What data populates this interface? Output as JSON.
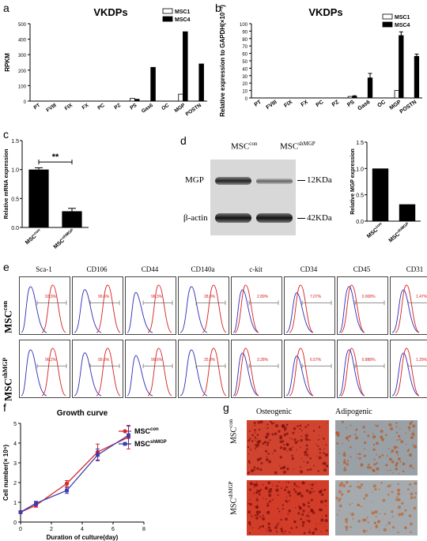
{
  "panel_labels": [
    "a",
    "b",
    "c",
    "d",
    "e",
    "f",
    "g"
  ],
  "chart_data": [
    {
      "id": "a",
      "type": "bar",
      "title": "VKDPs",
      "ylabel": "RPKM",
      "ylim": [
        0,
        500
      ],
      "yticks": [
        "0",
        "100",
        "200",
        "300",
        "400",
        "500"
      ],
      "categories": [
        "PT",
        "FVIII",
        "FIX",
        "FX",
        "PC",
        "PZ",
        "PS",
        "Gas6",
        "OC",
        "MGP",
        "POSTN"
      ],
      "series": [
        {
          "name": "MSC1",
          "color": "#ffffff",
          "values": [
            0,
            0,
            0,
            0,
            0,
            0,
            18,
            0,
            0,
            45,
            0
          ]
        },
        {
          "name": "MSC4",
          "color": "#000000",
          "values": [
            0,
            0,
            0,
            0,
            0,
            0,
            12,
            218,
            0,
            448,
            240
          ]
        }
      ],
      "legend": "top-right"
    },
    {
      "id": "b",
      "type": "bar",
      "title": "VKDPs",
      "ylabel": "Relative  expression to GAPDH(×10⁻³)",
      "ylim": [
        0,
        100
      ],
      "yticks": [
        "0",
        "10",
        "20",
        "30",
        "40",
        "50",
        "60",
        "70",
        "80",
        "90",
        "100"
      ],
      "categories": [
        "PT",
        "FVIII",
        "FIX",
        "FX",
        "PC",
        "PZ",
        "PS",
        "Gas6",
        "OC",
        "MGP",
        "POSTN"
      ],
      "series": [
        {
          "name": "MSC1",
          "color": "#ffffff",
          "values": [
            0,
            0,
            0,
            0,
            0,
            0,
            2,
            0,
            0,
            10,
            0
          ]
        },
        {
          "name": "MSC4",
          "color": "#000000",
          "values": [
            0,
            0,
            0,
            0,
            0,
            0,
            2,
            27,
            0,
            84,
            56
          ]
        }
      ],
      "errors": [
        0,
        0,
        0,
        0,
        0,
        0,
        1,
        6,
        0,
        5,
        3
      ],
      "legend": "top-right"
    },
    {
      "id": "c",
      "type": "bar",
      "ylabel": "Relative mRNA expression",
      "ylim": [
        0,
        1.5
      ],
      "yticks": [
        "0.0",
        "0.5",
        "1.0",
        "1.5"
      ],
      "categories": [
        "MSC",
        "MSC"
      ],
      "category_sup": [
        "con",
        "shMGP"
      ],
      "values": [
        1.0,
        0.28
      ],
      "errors": [
        0.03,
        0.05
      ],
      "annotation": "**"
    },
    {
      "id": "d",
      "type": "bar",
      "ylabel": "Relative MGP expression",
      "ylim": [
        0,
        1.5
      ],
      "yticks": [
        "0.0",
        "0.5",
        "1.0",
        "1.5"
      ],
      "categories": [
        "MSC",
        "MSC"
      ],
      "category_sup": [
        "con",
        "shMGP"
      ],
      "values": [
        1.0,
        0.32
      ]
    },
    {
      "id": "f",
      "type": "line",
      "title": "Growth curve",
      "ylabel": "Cell number(× 10⁵)",
      "xlabel": "Duration of culture(day)",
      "xlim": [
        0,
        8
      ],
      "ylim": [
        0,
        5
      ],
      "xticks": [
        "0",
        "2",
        "4",
        "6",
        "8"
      ],
      "yticks": [
        "0",
        "1",
        "2",
        "3",
        "4",
        "5"
      ],
      "x": [
        0,
        1,
        3,
        5,
        7
      ],
      "series": [
        {
          "name": "MSC",
          "sup": "con",
          "color": "#d62728",
          "marker": "circle",
          "values": [
            0.5,
            0.85,
            1.95,
            3.55,
            4.3
          ],
          "errors": [
            0.05,
            0.1,
            0.15,
            0.4,
            0.6
          ]
        },
        {
          "name": "MSC",
          "sup": "shMGP",
          "color": "#3b3bb0",
          "marker": "square",
          "values": [
            0.5,
            0.95,
            1.6,
            3.4,
            4.4
          ],
          "errors": [
            0.05,
            0.1,
            0.15,
            0.3,
            0.45
          ]
        }
      ],
      "legend": "top-right"
    }
  ],
  "western": {
    "header_left": "MSC",
    "header_left_sup": "con",
    "header_right": "MSC",
    "header_right_sup": "shMGP",
    "row1_label": "MGP",
    "row1_size": "12KDa",
    "row2_label": "β-actin",
    "row2_size": "42KDa"
  },
  "flow": {
    "markers": [
      "Sca-1",
      "CD106",
      "CD44",
      "CD140a",
      "c-kit",
      "CD34",
      "CD45",
      "CD31"
    ],
    "row_labels": [
      {
        "main": "MSC",
        "sup": "con"
      },
      {
        "main": "MSC",
        "sup": "shMGP"
      }
    ],
    "pct_con": [
      "93.9%",
      "99.6%",
      "96.3%",
      "28.0%",
      "2.89%",
      "7.07%",
      "0.008%",
      "1.47%"
    ],
    "pct_sh": [
      "96.2%",
      "99.6%",
      "99.6%",
      "25.8%",
      "3.28%",
      "6.57%",
      "0.888%",
      "1.29%"
    ]
  },
  "stain": {
    "col_labels": [
      "Osteogenic",
      "Adipogenic"
    ],
    "row_labels": [
      {
        "main": "MSC",
        "sup": "con"
      },
      {
        "main": "MSC",
        "sup": "shMGP"
      }
    ]
  }
}
